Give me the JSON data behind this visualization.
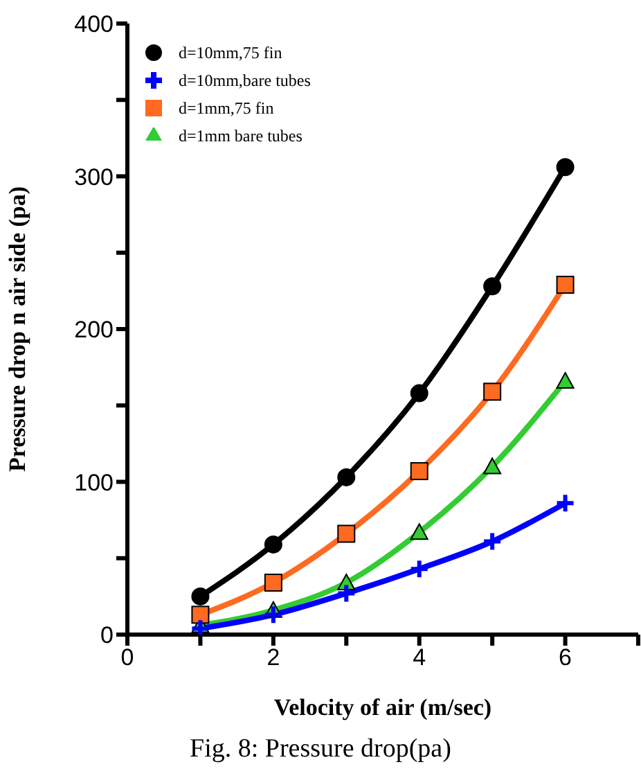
{
  "chart_data": {
    "type": "line",
    "xlabel": "Velocity of air (m/sec)",
    "ylabel": "Pressure drop n air side (pa)",
    "annotations": [
      "Fig. 8: Pressure drop(pa)"
    ],
    "x": [
      1,
      2,
      3,
      4,
      5,
      6
    ],
    "series": [
      {
        "name": "d=10mm,75 fin",
        "color": "#000000",
        "marker": "circle",
        "values": [
          25,
          59,
          103,
          158,
          228,
          306
        ]
      },
      {
        "name": "d=10mm,bare tubes",
        "color": "#0000ff",
        "marker": "cross",
        "values": [
          4,
          13,
          27,
          43,
          61,
          86
        ]
      },
      {
        "name": "d=1mm,75 fin",
        "color": "#ff6a21",
        "marker": "square",
        "values": [
          13,
          34,
          66,
          107,
          159,
          229
        ]
      },
      {
        "name": "d=1mm bare tubes",
        "color": "#33cc33",
        "marker": "triangle",
        "values": [
          6,
          16,
          34,
          67,
          110,
          166
        ]
      }
    ],
    "xlim": [
      0,
      7
    ],
    "xticks": [
      0,
      {
        "value": 1,
        "label": null
      },
      2,
      {
        "value": 3,
        "label": null
      },
      4,
      {
        "value": 5,
        "label": null
      },
      6,
      {
        "value": 7,
        "label": null
      }
    ],
    "ylim": [
      0,
      400
    ],
    "yticks": [
      0,
      {
        "value": 50,
        "label": null
      },
      100,
      {
        "value": 150,
        "label": null
      },
      200,
      {
        "value": 250,
        "label": null
      },
      300,
      {
        "value": 350,
        "label": null
      },
      400
    ],
    "grid": false,
    "legend": "top left",
    "line_style": "solid"
  }
}
